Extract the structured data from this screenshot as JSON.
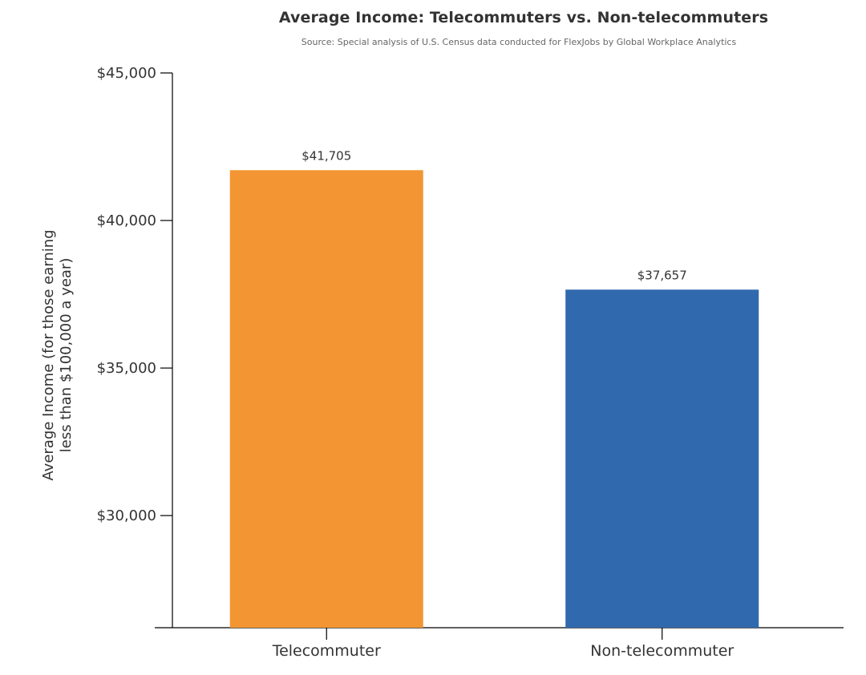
{
  "chart_data": {
    "type": "bar",
    "title": "Average Income: Telecommuters vs. Non-telecommuters",
    "subtitle": "Source: Special analysis of U.S. Census data conducted for FlexJobs by Global Workplace Analytics",
    "ylabel_lines": [
      "Average Income (for those earning",
      "less than $100,000 a year)"
    ],
    "xlabel": "",
    "categories": [
      "Telecommuter",
      "Non-telecommuter"
    ],
    "values": [
      41705,
      37657
    ],
    "data_labels": [
      "$41,705",
      "$37,657"
    ],
    "colors": [
      "#F39533",
      "#3169AE"
    ],
    "ylim": [
      26200,
      45000
    ],
    "yticks": [
      30000,
      35000,
      40000,
      45000
    ],
    "ytick_labels": [
      "$30,000",
      "$35,000",
      "$40,000",
      "$45,000"
    ],
    "grid": false,
    "legend": "none"
  }
}
